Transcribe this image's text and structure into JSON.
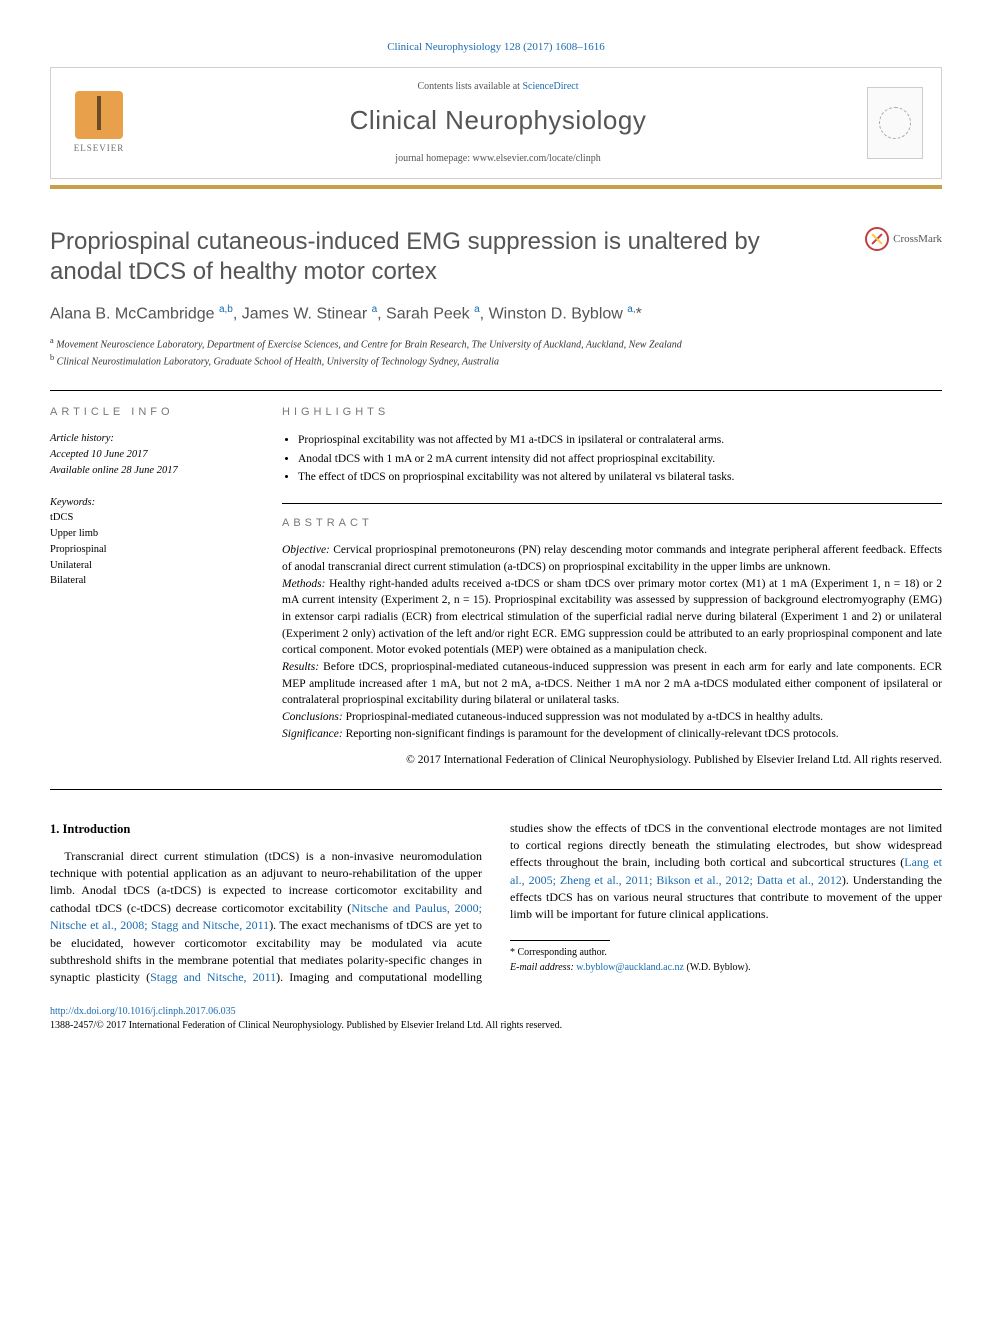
{
  "citation": "Clinical Neurophysiology 128 (2017) 1608–1616",
  "header": {
    "contents_prefix": "Contents lists available at ",
    "contents_link": "ScienceDirect",
    "journal_name": "Clinical Neurophysiology",
    "homepage_prefix": "journal homepage: ",
    "homepage_url": "www.elsevier.com/locate/clinph",
    "publisher_label": "ELSEVIER"
  },
  "crossmark_label": "CrossMark",
  "title": "Propriospinal cutaneous-induced EMG suppression is unaltered by anodal tDCS of healthy motor cortex",
  "authors_html": "Alana B. McCambridge <sup>a,b</sup>, James W. Stinear <sup>a</sup>, Sarah Peek <sup>a</sup>, Winston D. Byblow <sup>a,</sup>*",
  "affiliations": [
    "a Movement Neuroscience Laboratory, Department of Exercise Sciences, and Centre for Brain Research, The University of Auckland, Auckland, New Zealand",
    "b Clinical Neurostimulation Laboratory, Graduate School of Health, University of Technology Sydney, Australia"
  ],
  "article_info": {
    "heading": "ARTICLE INFO",
    "history_label": "Article history:",
    "accepted": "Accepted 10 June 2017",
    "online": "Available online 28 June 2017",
    "keywords_label": "Keywords:",
    "keywords": [
      "tDCS",
      "Upper limb",
      "Propriospinal",
      "Unilateral",
      "Bilateral"
    ]
  },
  "highlights": {
    "heading": "HIGHLIGHTS",
    "items": [
      "Propriospinal excitability was not affected by M1 a-tDCS in ipsilateral or contralateral arms.",
      "Anodal tDCS with 1 mA or 2 mA current intensity did not affect propriospinal excitability.",
      "The effect of tDCS on propriospinal excitability was not altered by unilateral vs bilateral tasks."
    ]
  },
  "abstract": {
    "heading": "ABSTRACT",
    "sections": [
      {
        "label": "Objective:",
        "text": " Cervical propriospinal premotoneurons (PN) relay descending motor commands and integrate peripheral afferent feedback. Effects of anodal transcranial direct current stimulation (a-tDCS) on propriospinal excitability in the upper limbs are unknown."
      },
      {
        "label": "Methods:",
        "text": " Healthy right-handed adults received a-tDCS or sham tDCS over primary motor cortex (M1) at 1 mA (Experiment 1, n = 18) or 2 mA current intensity (Experiment 2, n = 15). Propriospinal excitability was assessed by suppression of background electromyography (EMG) in extensor carpi radialis (ECR) from electrical stimulation of the superficial radial nerve during bilateral (Experiment 1 and 2) or unilateral (Experiment 2 only) activation of the left and/or right ECR. EMG suppression could be attributed to an early propriospinal component and late cortical component. Motor evoked potentials (MEP) were obtained as a manipulation check."
      },
      {
        "label": "Results:",
        "text": " Before tDCS, propriospinal-mediated cutaneous-induced suppression was present in each arm for early and late components. ECR MEP amplitude increased after 1 mA, but not 2 mA, a-tDCS. Neither 1 mA nor 2 mA a-tDCS modulated either component of ipsilateral or contralateral propriospinal excitability during bilateral or unilateral tasks."
      },
      {
        "label": "Conclusions:",
        "text": " Propriospinal-mediated cutaneous-induced suppression was not modulated by a-tDCS in healthy adults."
      },
      {
        "label": "Significance:",
        "text": " Reporting non-significant findings is paramount for the development of clinically-relevant tDCS protocols."
      }
    ],
    "copyright": "© 2017 International Federation of Clinical Neurophysiology. Published by Elsevier Ireland Ltd. All rights reserved."
  },
  "body": {
    "section_num": "1.",
    "section_title": "Introduction",
    "col1_para": "Transcranial direct current stimulation (tDCS) is a non-invasive neuromodulation technique with potential application as an adjuvant to neuro-rehabilitation of the upper limb. Anodal tDCS (a-tDCS) is expected to increase corticomotor excitability and cathodal tDCS (c-tDCS) decrease corticomotor excitability (",
    "col1_ref": "Nitsche and Paulus, 2000; Nitsche et al., 2008; Stagg and Nitsche, 2011",
    "col1_end": "). The exact mechanisms of tDCS are yet to be elucidated, however",
    "col2_para": "corticomotor excitability may be modulated via acute subthreshold shifts in the membrane potential that mediates polarity-specific changes in synaptic plasticity (",
    "col2_ref1": "Stagg and Nitsche, 2011",
    "col2_mid": "). Imaging and computational modelling studies show the effects of tDCS in the conventional electrode montages are not limited to cortical regions directly beneath the stimulating electrodes, but show widespread effects throughout the brain, including both cortical and subcortical structures (",
    "col2_ref2": "Lang et al., 2005; Zheng et al., 2011; Bikson et al., 2012; Datta et al., 2012",
    "col2_end": "). Understanding the effects tDCS has on various neural structures that contribute to movement of the upper limb will be important for future clinical applications."
  },
  "footnotes": {
    "corr_label": "* Corresponding author.",
    "email_label": "E-mail address:",
    "email": "w.byblow@auckland.ac.nz",
    "email_name": "(W.D. Byblow)."
  },
  "doi": {
    "url": "http://dx.doi.org/10.1016/j.clinph.2017.06.035",
    "issn_line": "1388-2457/© 2017 International Federation of Clinical Neurophysiology. Published by Elsevier Ireland Ltd. All rights reserved."
  },
  "colors": {
    "link": "#1a6bb0",
    "gold_bar": "#c9a04a",
    "heading_gray": "#555555"
  }
}
